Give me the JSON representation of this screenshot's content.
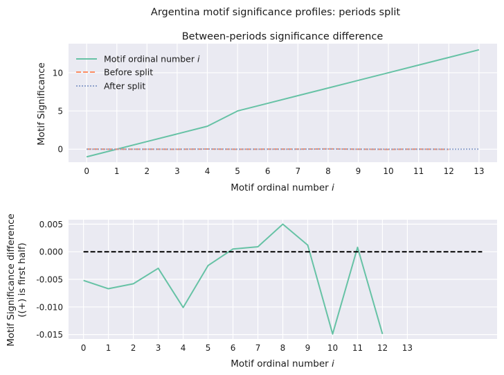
{
  "chart_data": {
    "suptitle": "Argentina motif significance profiles: periods split",
    "subplots": [
      {
        "type": "line",
        "title": "Between-periods significance difference",
        "xlabel": "Motif ordinal number",
        "xlabel_var": "i",
        "ylabel": "Motif Significance",
        "xlim": [
          -0.6,
          13.6
        ],
        "ylim": [
          -1.7,
          13.8
        ],
        "xticks": [
          "0",
          "1",
          "2",
          "3",
          "4",
          "5",
          "6",
          "7",
          "8",
          "9",
          "10",
          "11",
          "12",
          "13"
        ],
        "yticks": [
          "0",
          "5",
          "10"
        ],
        "grid": true,
        "legend_position": "top-left",
        "series": [
          {
            "name": "Motif ordinal number",
            "name_var": "i",
            "style": "solid",
            "color": "#66c2a5",
            "x": [
              0,
              1,
              2,
              3,
              4,
              5,
              6,
              7,
              8,
              9,
              10,
              11,
              12,
              13
            ],
            "values": [
              -1,
              0,
              1,
              2,
              3,
              5,
              6,
              7,
              8,
              9,
              10,
              11,
              12,
              13
            ]
          },
          {
            "name": "Before split",
            "style": "dashed",
            "color": "#fc8d62",
            "x": [
              0,
              1,
              2,
              3,
              4,
              5,
              6,
              7,
              8,
              9,
              10,
              11,
              12
            ],
            "values": [
              0.01,
              0.0,
              0.0,
              -0.01,
              0.02,
              -0.01,
              0.01,
              0.01,
              0.04,
              0.0,
              -0.02,
              0.01,
              -0.02
            ]
          },
          {
            "name": "After split",
            "style": "dotted",
            "color": "#8da0cb",
            "x": [
              0,
              1,
              2,
              3,
              4,
              5,
              6,
              7,
              8,
              9,
              10,
              11,
              12,
              13
            ],
            "values": [
              0.0,
              0.0,
              0.0,
              0.0,
              0.02,
              0.0,
              0.0,
              0.0,
              0.03,
              0.0,
              0.0,
              0.0,
              0.0,
              0.01
            ]
          }
        ]
      },
      {
        "type": "line",
        "title": "",
        "xlabel": "Motif ordinal number",
        "xlabel_var": "i",
        "ylabel": "Motif Significance difference",
        "ylabel_line2": "((+) is first half)",
        "xlim": [
          -0.6,
          16.6
        ],
        "ylim": [
          -0.0158,
          0.0058
        ],
        "xticks": [
          "0",
          "1",
          "2",
          "3",
          "4",
          "5",
          "6",
          "7",
          "8",
          "9",
          "10",
          "11",
          "12",
          "13"
        ],
        "yticks": [
          "0.005",
          "0.000",
          "-0.005",
          "-0.010",
          "-0.015"
        ],
        "grid": true,
        "series": [
          {
            "style": "solid",
            "color": "#66c2a5",
            "x": [
              0,
              1,
              2,
              3,
              4,
              5,
              6,
              7,
              8,
              9,
              10,
              11,
              12
            ],
            "values": [
              -0.0052,
              -0.0067,
              -0.0058,
              -0.003,
              -0.0101,
              -0.0025,
              0.0005,
              0.0009,
              0.005,
              0.0012,
              -0.0149,
              0.0008,
              -0.0149
            ]
          },
          {
            "style": "dashed",
            "color": "#000000",
            "x": [
              0,
              16
            ],
            "values": [
              0.0,
              0.0
            ]
          }
        ]
      }
    ]
  }
}
